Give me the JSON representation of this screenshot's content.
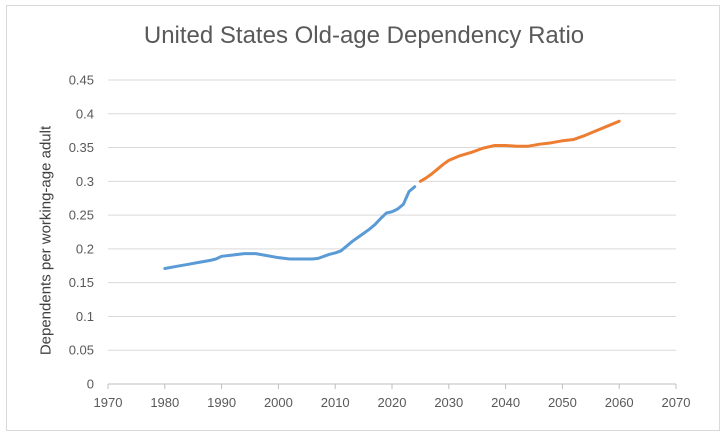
{
  "chart_data": {
    "type": "line",
    "title": "United States Old-age Dependency Ratio",
    "xlabel": "",
    "ylabel": "Dependents per working-age adult",
    "xlim": [
      1970,
      2070
    ],
    "ylim": [
      0,
      0.45
    ],
    "x_ticks": [
      "1970",
      "1980",
      "1990",
      "2000",
      "2010",
      "2020",
      "2030",
      "2040",
      "2050",
      "2060",
      "2070"
    ],
    "y_ticks": [
      "0",
      "0.05",
      "0.1",
      "0.15",
      "0.2",
      "0.25",
      "0.3",
      "0.35",
      "0.4",
      "0.45"
    ],
    "grid": "horizontal",
    "legend": "none",
    "series": [
      {
        "color": "#5b9bd5",
        "points": [
          [
            1980,
            0.171
          ],
          [
            1982,
            0.174
          ],
          [
            1984,
            0.177
          ],
          [
            1986,
            0.18
          ],
          [
            1988,
            0.183
          ],
          [
            1989,
            0.185
          ],
          [
            1990,
            0.189
          ],
          [
            1992,
            0.191
          ],
          [
            1994,
            0.193
          ],
          [
            1996,
            0.193
          ],
          [
            1998,
            0.19
          ],
          [
            2000,
            0.187
          ],
          [
            2002,
            0.185
          ],
          [
            2004,
            0.185
          ],
          [
            2006,
            0.185
          ],
          [
            2007,
            0.186
          ],
          [
            2008,
            0.189
          ],
          [
            2009,
            0.192
          ],
          [
            2010,
            0.194
          ],
          [
            2011,
            0.197
          ],
          [
            2012,
            0.204
          ],
          [
            2013,
            0.211
          ],
          [
            2014,
            0.217
          ],
          [
            2015,
            0.223
          ],
          [
            2016,
            0.229
          ],
          [
            2017,
            0.236
          ],
          [
            2018,
            0.245
          ],
          [
            2019,
            0.253
          ],
          [
            2020,
            0.255
          ],
          [
            2021,
            0.259
          ],
          [
            2022,
            0.266
          ],
          [
            2023,
            0.285
          ],
          [
            2024,
            0.292
          ]
        ]
      },
      {
        "color": "#ed7d31",
        "points": [
          [
            2025,
            0.3
          ],
          [
            2026,
            0.305
          ],
          [
            2027,
            0.311
          ],
          [
            2028,
            0.318
          ],
          [
            2029,
            0.325
          ],
          [
            2030,
            0.331
          ],
          [
            2032,
            0.338
          ],
          [
            2034,
            0.343
          ],
          [
            2036,
            0.349
          ],
          [
            2038,
            0.353
          ],
          [
            2040,
            0.353
          ],
          [
            2042,
            0.352
          ],
          [
            2044,
            0.352
          ],
          [
            2046,
            0.355
          ],
          [
            2048,
            0.357
          ],
          [
            2050,
            0.36
          ],
          [
            2052,
            0.362
          ],
          [
            2054,
            0.368
          ],
          [
            2056,
            0.375
          ],
          [
            2058,
            0.382
          ],
          [
            2060,
            0.389
          ]
        ]
      }
    ]
  }
}
